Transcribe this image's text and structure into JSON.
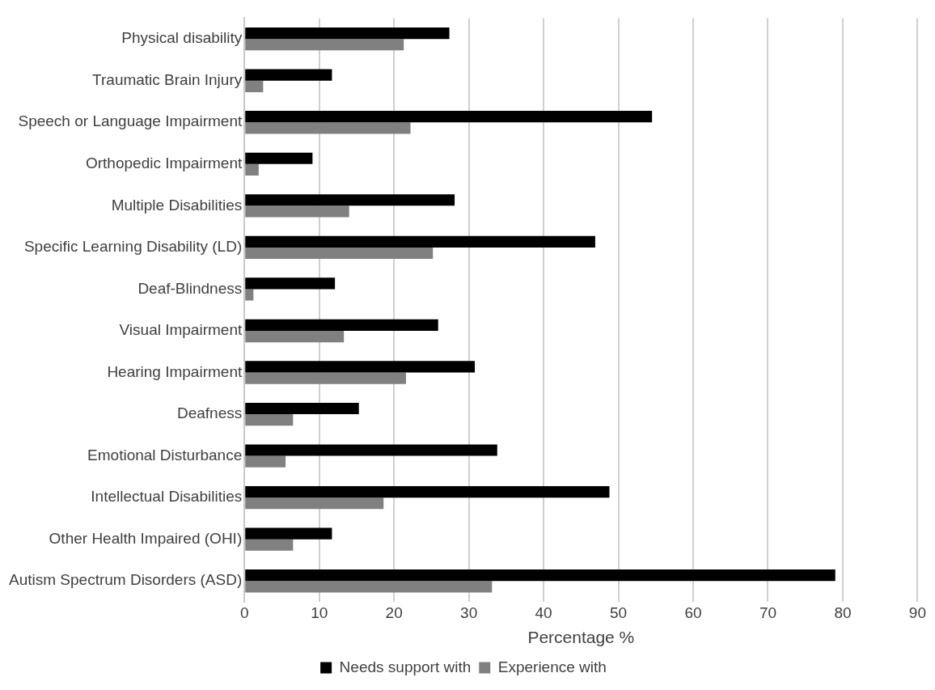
{
  "chart_data": {
    "type": "bar",
    "orientation": "horizontal",
    "xlabel": "Percentage %",
    "categories": [
      "Physical disability",
      "Traumatic Brain Injury",
      "Speech or Language Impairment",
      "Orthopedic Impairment",
      "Multiple Disabilities",
      "Specific Learning Disability (LD)",
      "Deaf-Blindness",
      "Visual Impairment",
      "Hearing Impairment",
      "Deafness",
      "Emotional Disturbance",
      "Intellectual Disabilities",
      "Other Health Impaired (OHI)",
      "Autism Spectrum Disorders (ASD)"
    ],
    "series": [
      {
        "name": "Needs support with",
        "color": "#000000",
        "values": [
          27.4,
          11.7,
          54.5,
          9.1,
          28.1,
          46.9,
          12.1,
          25.9,
          30.8,
          15.3,
          33.8,
          48.8,
          11.7,
          79
        ]
      },
      {
        "name": "Experience with",
        "color": "#808080",
        "values": [
          21.3,
          2.5,
          22.2,
          1.9,
          14,
          25.2,
          1.2,
          13.3,
          21.6,
          6.5,
          5.5,
          18.6,
          6.5,
          33.1
        ]
      }
    ],
    "xlim": [
      0,
      90
    ],
    "xticks": [
      0,
      10,
      20,
      30,
      40,
      50,
      60,
      70,
      80,
      90
    ],
    "grid": "x",
    "legend": "bottom"
  }
}
